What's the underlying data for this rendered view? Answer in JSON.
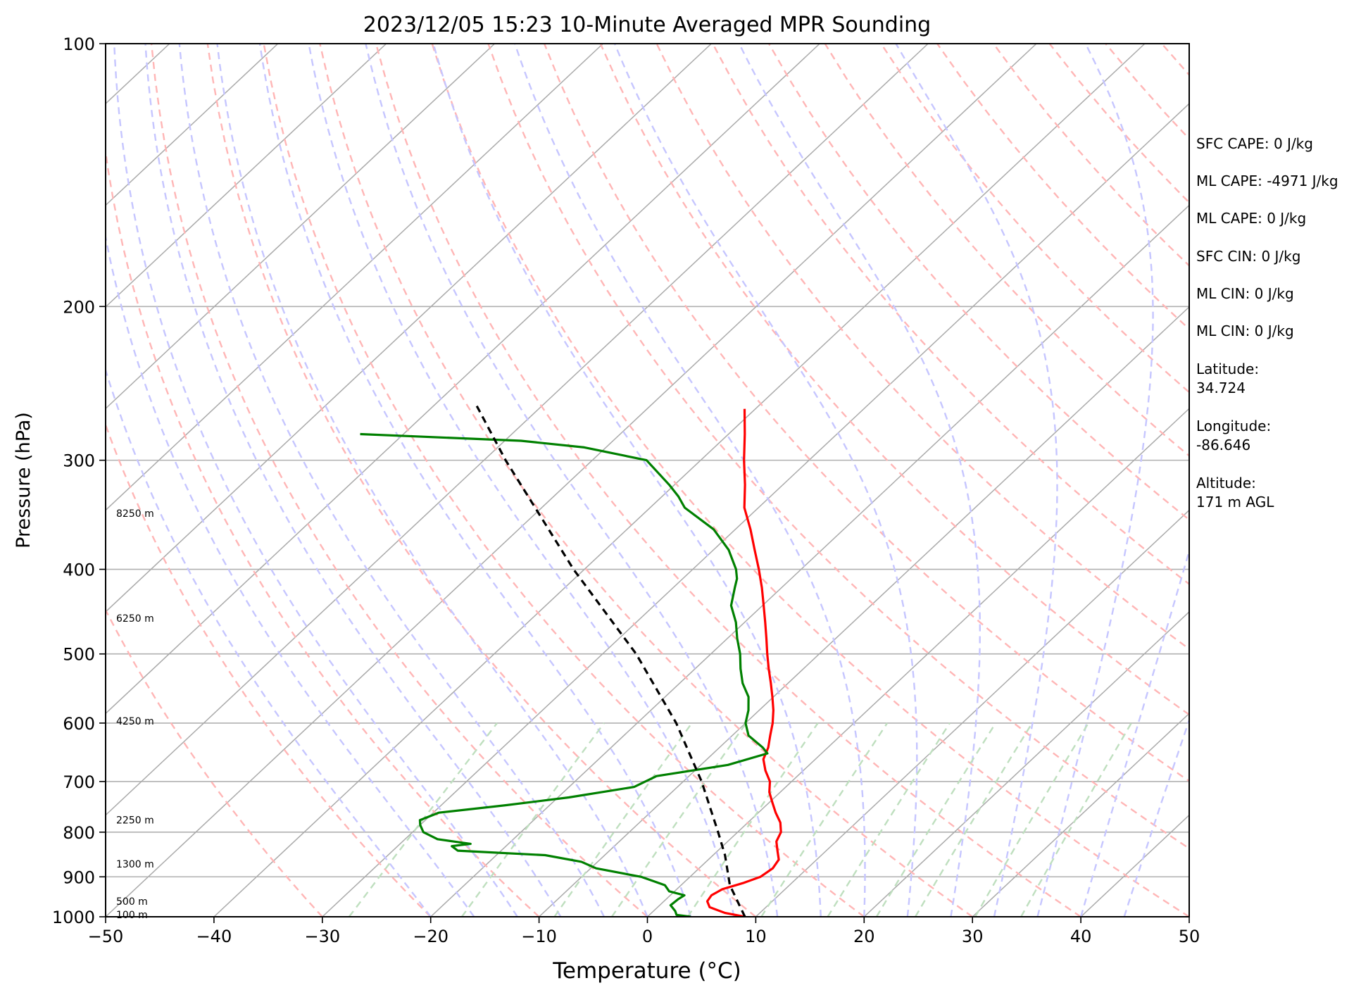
{
  "chart_data": {
    "type": "line",
    "title": "2023/12/05 15:23 10-Minute Averaged MPR Sounding",
    "xlabel": "Temperature (°C)",
    "ylabel": "Pressure (hPa)",
    "xlim": [
      -50,
      50
    ],
    "ylim": [
      1000,
      100
    ],
    "y_scale": "log",
    "grid": true,
    "skew_per_log_decade": 85.9,
    "x_ticks": [
      "−50",
      "−40",
      "−30",
      "−20",
      "−10",
      "0",
      "10",
      "20",
      "30",
      "40",
      "50"
    ],
    "x_tick_values": [
      -50,
      -40,
      -30,
      -20,
      -10,
      0,
      10,
      20,
      30,
      40,
      50
    ],
    "y_ticks": [
      "100",
      "200",
      "300",
      "400",
      "500",
      "600",
      "700",
      "800",
      "900",
      "1000"
    ],
    "y_tick_values": [
      100,
      200,
      300,
      400,
      500,
      600,
      700,
      800,
      900,
      1000
    ],
    "height_labels": [
      {
        "text": "8250 m",
        "p": 345
      },
      {
        "text": "6250 m",
        "p": 455
      },
      {
        "text": "4250 m",
        "p": 597
      },
      {
        "text": "2250 m",
        "p": 775
      },
      {
        "text": "1300 m",
        "p": 870
      },
      {
        "text": "500 m",
        "p": 960
      },
      {
        "text": "100 m",
        "p": 994
      }
    ],
    "series": [
      {
        "color": "#ff0000",
        "style": "solid",
        "points": [
          {
            "p": 1000,
            "t": 9.0
          },
          {
            "p": 990,
            "t": 6.8
          },
          {
            "p": 975,
            "t": 4.8
          },
          {
            "p": 960,
            "t": 4.0
          },
          {
            "p": 945,
            "t": 3.8
          },
          {
            "p": 930,
            "t": 4.2
          },
          {
            "p": 915,
            "t": 5.5
          },
          {
            "p": 900,
            "t": 6.5
          },
          {
            "p": 880,
            "t": 6.8
          },
          {
            "p": 860,
            "t": 6.5
          },
          {
            "p": 840,
            "t": 5.5
          },
          {
            "p": 820,
            "t": 4.5
          },
          {
            "p": 800,
            "t": 4.0
          },
          {
            "p": 780,
            "t": 3.0
          },
          {
            "p": 760,
            "t": 1.6
          },
          {
            "p": 740,
            "t": 0.3
          },
          {
            "p": 720,
            "t": -1.0
          },
          {
            "p": 700,
            "t": -2.0
          },
          {
            "p": 680,
            "t": -3.5
          },
          {
            "p": 660,
            "t": -4.8
          },
          {
            "p": 640,
            "t": -5.5
          },
          {
            "p": 620,
            "t": -6.5
          },
          {
            "p": 600,
            "t": -7.5
          },
          {
            "p": 580,
            "t": -8.7
          },
          {
            "p": 560,
            "t": -10.1
          },
          {
            "p": 540,
            "t": -11.6
          },
          {
            "p": 520,
            "t": -13.2
          },
          {
            "p": 500,
            "t": -14.8
          },
          {
            "p": 480,
            "t": -16.4
          },
          {
            "p": 460,
            "t": -18.1
          },
          {
            "p": 440,
            "t": -19.9
          },
          {
            "p": 420,
            "t": -21.8
          },
          {
            "p": 400,
            "t": -23.9
          },
          {
            "p": 380,
            "t": -26.2
          },
          {
            "p": 360,
            "t": -28.6
          },
          {
            "p": 340,
            "t": -31.3
          },
          {
            "p": 320,
            "t": -33.5
          },
          {
            "p": 300,
            "t": -36.0
          },
          {
            "p": 280,
            "t": -38.5
          },
          {
            "p": 262,
            "t": -41.0
          }
        ]
      },
      {
        "color": "#008000",
        "style": "solid",
        "points": [
          {
            "p": 1000,
            "t": 4.0
          },
          {
            "p": 995,
            "t": 2.5
          },
          {
            "p": 985,
            "t": 2.0
          },
          {
            "p": 970,
            "t": 1.0
          },
          {
            "p": 955,
            "t": 1.1
          },
          {
            "p": 945,
            "t": 1.3
          },
          {
            "p": 935,
            "t": -0.5
          },
          {
            "p": 920,
            "t": -1.5
          },
          {
            "p": 900,
            "t": -4.5
          },
          {
            "p": 880,
            "t": -9.5
          },
          {
            "p": 865,
            "t": -11.5
          },
          {
            "p": 850,
            "t": -15.5
          },
          {
            "p": 840,
            "t": -24.0
          },
          {
            "p": 830,
            "t": -25.0
          },
          {
            "p": 825,
            "t": -23.5
          },
          {
            "p": 815,
            "t": -27.0
          },
          {
            "p": 800,
            "t": -29.0
          },
          {
            "p": 785,
            "t": -30.0
          },
          {
            "p": 775,
            "t": -30.5
          },
          {
            "p": 760,
            "t": -29.5
          },
          {
            "p": 745,
            "t": -24.0
          },
          {
            "p": 730,
            "t": -19.0
          },
          {
            "p": 710,
            "t": -14.0
          },
          {
            "p": 690,
            "t": -13.0
          },
          {
            "p": 670,
            "t": -7.5
          },
          {
            "p": 650,
            "t": -5.0
          },
          {
            "p": 640,
            "t": -6.0
          },
          {
            "p": 620,
            "t": -8.5
          },
          {
            "p": 600,
            "t": -10.0
          },
          {
            "p": 580,
            "t": -11.0
          },
          {
            "p": 560,
            "t": -12.3
          },
          {
            "p": 540,
            "t": -14.2
          },
          {
            "p": 520,
            "t": -15.8
          },
          {
            "p": 500,
            "t": -17.3
          },
          {
            "p": 480,
            "t": -19.1
          },
          {
            "p": 460,
            "t": -20.8
          },
          {
            "p": 440,
            "t": -22.9
          },
          {
            "p": 420,
            "t": -24.3
          },
          {
            "p": 410,
            "t": -25.0
          },
          {
            "p": 400,
            "t": -26.0
          },
          {
            "p": 380,
            "t": -28.6
          },
          {
            "p": 360,
            "t": -32.0
          },
          {
            "p": 340,
            "t": -36.8
          },
          {
            "p": 330,
            "t": -38.5
          },
          {
            "p": 320,
            "t": -40.5
          },
          {
            "p": 300,
            "t": -45.0
          },
          {
            "p": 290,
            "t": -52.0
          },
          {
            "p": 285,
            "t": -58.5
          },
          {
            "p": 280,
            "t": -74.0
          }
        ]
      },
      {
        "color": "#000000",
        "style": "dashed",
        "points": [
          {
            "p": 1000,
            "t": 9.0
          },
          {
            "p": 920,
            "t": 4.5
          },
          {
            "p": 850,
            "t": 1.1
          },
          {
            "p": 800,
            "t": -1.8
          },
          {
            "p": 700,
            "t": -8.3
          },
          {
            "p": 600,
            "t": -16.4
          },
          {
            "p": 500,
            "t": -26.9
          },
          {
            "p": 400,
            "t": -41.0
          },
          {
            "p": 300,
            "t": -58.0
          },
          {
            "p": 260,
            "t": -66.0
          }
        ]
      }
    ],
    "background_lines": {
      "isotherms": {
        "color": "#aaaaaa",
        "style": "solid"
      },
      "dry_adiabats": {
        "color": "#ffb6b6",
        "style": "dashed"
      },
      "moist_adiabats": {
        "color": "#c6c6ff",
        "style": "dashed"
      },
      "mixing_ratio_lines": {
        "color": "#bfdfbf",
        "style": "dashed"
      }
    }
  },
  "info_panel": [
    "SFC CAPE: 0 J/kg",
    "ML CAPE: -4971 J/kg",
    "ML CAPE: 0 J/kg",
    "SFC CIN: 0 J/kg",
    "ML CIN: 0 J/kg",
    "ML CIN: 0 J/kg",
    "Latitude:",
    "34.724",
    "Longitude:",
    "-86.646",
    "Altitude:",
    "171 m AGL"
  ]
}
